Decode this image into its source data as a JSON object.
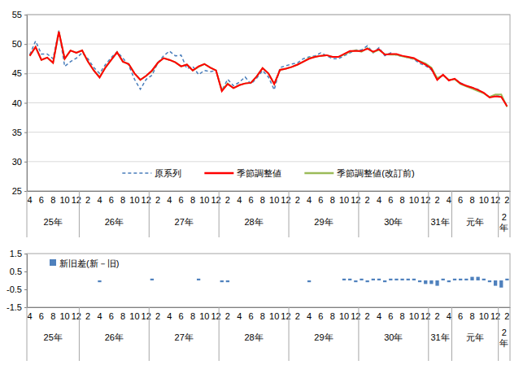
{
  "chart_data": [
    {
      "type": "line",
      "categories": [
        "4",
        null,
        "6",
        null,
        "8",
        null,
        "10",
        null,
        "12",
        null,
        "2",
        null,
        "4",
        null,
        "6",
        null,
        "8",
        null,
        "10",
        null,
        "12",
        null,
        "2",
        null,
        "4",
        null,
        "6",
        null,
        "8",
        null,
        "10",
        null,
        "12",
        null,
        "2",
        null,
        "4",
        null,
        "6",
        null,
        "8",
        null,
        "10",
        null,
        "12",
        null,
        "2",
        null,
        "4",
        null,
        "6",
        null,
        "8",
        null,
        "10",
        null,
        "12",
        null,
        "2",
        null,
        "4",
        null,
        "6",
        null,
        "8",
        null,
        "10",
        null,
        "12",
        null,
        "2",
        null,
        "4",
        null,
        "6",
        null,
        "8",
        null,
        "10",
        null,
        "12",
        null,
        "2"
      ],
      "groups": [
        {
          "label": "25年",
          "size": 9
        },
        {
          "label": "26年",
          "size": 12
        },
        {
          "label": "27年",
          "size": 12
        },
        {
          "label": "28年",
          "size": 12
        },
        {
          "label": "29年",
          "size": 12
        },
        {
          "label": "30年",
          "size": 12
        },
        {
          "label": "31年",
          "size": 4
        },
        {
          "label": "元年",
          "size": 8
        },
        {
          "label": "2年",
          "size": 2
        }
      ],
      "series": [
        {
          "name": "原系列",
          "color": "#4a7ebb",
          "line_style": "dashed",
          "values": [
            48.2,
            50.5,
            48.3,
            48.3,
            47.5,
            52.3,
            46.2,
            47.0,
            47.6,
            48.5,
            47.5,
            46.0,
            45.0,
            46.5,
            47.7,
            48.7,
            47.6,
            46.4,
            44.0,
            42.3,
            44.0,
            44.7,
            46.8,
            48.0,
            48.8,
            48.0,
            48.1,
            45.8,
            46.2,
            44.8,
            45.5,
            45.3,
            45.5,
            42.1,
            44.0,
            42.9,
            43.5,
            44.4,
            43.2,
            44.2,
            45.5,
            44.4,
            42.2,
            46.0,
            46.3,
            46.6,
            46.8,
            47.5,
            47.8,
            48.0,
            48.5,
            48.0,
            47.5,
            47.5,
            48.0,
            48.5,
            49.0,
            49.0,
            49.7,
            48.5,
            49.4,
            48.0,
            48.5,
            48.1,
            47.9,
            47.7,
            47.4,
            46.7,
            46.3,
            45.6,
            44.0,
            44.7,
            43.9,
            44.0,
            43.4,
            42.9,
            42.6,
            42.3,
            41.6,
            41.0,
            41.2,
            41.1,
            39.5
          ]
        },
        {
          "name": "季節調整値",
          "color": "#ff0000",
          "line_style": "solid",
          "values": [
            48.0,
            49.5,
            47.3,
            47.7,
            46.8,
            52.1,
            47.5,
            48.9,
            48.5,
            48.9,
            47.0,
            45.5,
            44.3,
            46.0,
            47.3,
            48.6,
            47.0,
            46.6,
            45.0,
            43.9,
            44.6,
            45.5,
            46.8,
            47.6,
            47.3,
            46.9,
            46.2,
            46.5,
            45.5,
            46.2,
            46.6,
            46.0,
            45.5,
            42.0,
            43.2,
            42.5,
            43.0,
            43.3,
            43.4,
            44.5,
            45.9,
            45.0,
            43.2,
            45.6,
            45.8,
            46.1,
            46.5,
            47.0,
            47.5,
            47.8,
            48.0,
            48.1,
            47.8,
            47.8,
            48.3,
            48.8,
            48.8,
            48.8,
            49.2,
            48.7,
            49.1,
            48.2,
            48.3,
            48.3,
            48.0,
            47.8,
            47.6,
            47.0,
            46.5,
            45.8,
            43.9,
            44.8,
            43.8,
            44.1,
            43.3,
            42.9,
            42.6,
            42.2,
            41.7,
            40.9,
            41.1,
            41.0,
            39.4
          ]
        },
        {
          "name": "季節調整値(改訂前)",
          "color": "#9bbb59",
          "line_style": "solid",
          "values": [
            48.0,
            49.5,
            47.3,
            47.7,
            46.8,
            52.1,
            47.5,
            48.9,
            48.5,
            48.9,
            47.0,
            45.5,
            44.4,
            46.0,
            47.3,
            48.6,
            47.0,
            46.6,
            45.0,
            43.9,
            44.6,
            45.4,
            46.8,
            47.6,
            47.3,
            46.9,
            46.2,
            46.5,
            45.5,
            46.1,
            46.6,
            46.0,
            45.5,
            42.1,
            43.3,
            42.5,
            43.0,
            43.3,
            43.4,
            44.5,
            45.9,
            45.0,
            43.2,
            45.6,
            45.8,
            46.1,
            46.5,
            47.0,
            47.6,
            47.8,
            48.0,
            48.1,
            47.8,
            47.8,
            48.2,
            48.7,
            48.9,
            48.7,
            49.3,
            48.6,
            49.0,
            48.3,
            48.2,
            48.2,
            47.9,
            47.7,
            47.5,
            47.1,
            46.7,
            46.0,
            44.2,
            44.7,
            43.9,
            44.0,
            43.2,
            42.8,
            42.4,
            42.0,
            41.6,
            41.0,
            41.4,
            41.4,
            39.3
          ]
        }
      ],
      "ylim": [
        25,
        55
      ],
      "yticks": [
        25,
        30,
        35,
        40,
        45,
        50,
        55
      ],
      "grid": true,
      "legend": "bottom"
    },
    {
      "type": "bar",
      "categories": [
        "4",
        null,
        "6",
        null,
        "8",
        null,
        "10",
        null,
        "12",
        null,
        "2",
        null,
        "4",
        null,
        "6",
        null,
        "8",
        null,
        "10",
        null,
        "12",
        null,
        "2",
        null,
        "4",
        null,
        "6",
        null,
        "8",
        null,
        "10",
        null,
        "12",
        null,
        "2",
        null,
        "4",
        null,
        "6",
        null,
        "8",
        null,
        "10",
        null,
        "12",
        null,
        "2",
        null,
        "4",
        null,
        "6",
        null,
        "8",
        null,
        "10",
        null,
        "12",
        null,
        "2",
        null,
        "4",
        null,
        "6",
        null,
        "8",
        null,
        "10",
        null,
        "12",
        null,
        "2",
        null,
        "4",
        null,
        "6",
        null,
        "8",
        null,
        "10",
        null,
        "12",
        null,
        "2"
      ],
      "groups": [
        {
          "label": "25年",
          "size": 9
        },
        {
          "label": "26年",
          "size": 12
        },
        {
          "label": "27年",
          "size": 12
        },
        {
          "label": "28年",
          "size": 12
        },
        {
          "label": "29年",
          "size": 12
        },
        {
          "label": "30年",
          "size": 12
        },
        {
          "label": "31年",
          "size": 4
        },
        {
          "label": "元年",
          "size": 8
        },
        {
          "label": "2年",
          "size": 2
        }
      ],
      "series": [
        {
          "name": "新旧差(新－旧)",
          "color": "#4f81bd",
          "values": [
            0,
            0,
            0,
            0,
            0,
            0,
            0,
            0,
            0,
            0,
            0,
            0,
            -0.1,
            0,
            0,
            0,
            0,
            0,
            0,
            0,
            0,
            0.1,
            0,
            0,
            0,
            0,
            0,
            0,
            0,
            0.1,
            0,
            0,
            0,
            -0.1,
            -0.1,
            0,
            0,
            0,
            0,
            0,
            0,
            0,
            0,
            0,
            0,
            0,
            0,
            0,
            -0.1,
            0,
            0,
            0,
            0,
            0,
            0.1,
            0.1,
            -0.1,
            0.1,
            -0.1,
            0.1,
            0.1,
            -0.1,
            0.1,
            0.1,
            0.1,
            0.1,
            0.1,
            -0.1,
            -0.2,
            -0.2,
            -0.3,
            0.1,
            -0.1,
            0.1,
            0.1,
            0.1,
            0.2,
            0.2,
            0.1,
            -0.1,
            -0.3,
            -0.4,
            0.1
          ]
        }
      ],
      "ylim": [
        -1.5,
        1.5
      ],
      "yticks": [
        -1.5,
        -0.5,
        0.5,
        1.5
      ],
      "grid": false,
      "legend": "top-left"
    }
  ]
}
